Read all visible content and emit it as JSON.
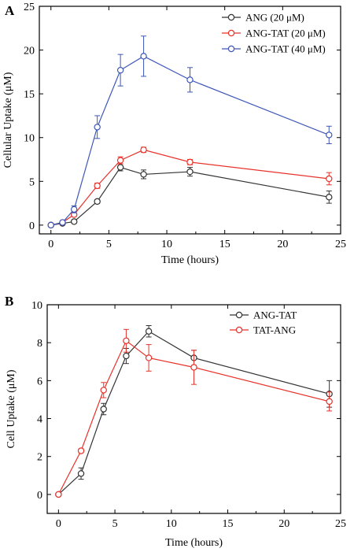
{
  "chart_data": [
    {
      "panel_label": "A",
      "type": "line",
      "xlabel": "Time (hours)",
      "ylabel": "Cellular Uptake (μM)",
      "xlim": [
        -1,
        25
      ],
      "ylim": [
        -1,
        25
      ],
      "xticks": [
        0,
        5,
        10,
        15,
        20,
        25
      ],
      "yticks": [
        0,
        5,
        10,
        15,
        20,
        25
      ],
      "grid": false,
      "legend_position": "top-right",
      "marker": "open-circle",
      "series": [
        {
          "name": "ANG (20 μM)",
          "color": "#333333",
          "x": [
            0,
            1,
            2,
            4,
            6,
            8,
            12,
            24
          ],
          "y": [
            0,
            0.2,
            0.4,
            2.7,
            6.6,
            5.8,
            6.1,
            3.2
          ],
          "err": [
            0,
            0.1,
            0.2,
            0.2,
            0.4,
            0.5,
            0.5,
            0.7
          ]
        },
        {
          "name": "ANG-TAT (20 μM)",
          "color": "#e8322b",
          "x": [
            0,
            1,
            2,
            4,
            6,
            8,
            12,
            24
          ],
          "y": [
            0,
            0.3,
            1.2,
            4.5,
            7.4,
            8.6,
            7.2,
            5.3
          ],
          "err": [
            0,
            0.1,
            0.2,
            0.3,
            0.4,
            0.3,
            0.3,
            0.7
          ]
        },
        {
          "name": "ANG-TAT (40 μM)",
          "color": "#3d56b8",
          "x": [
            0,
            1,
            2,
            4,
            6,
            8,
            12,
            24
          ],
          "y": [
            0,
            0.3,
            1.8,
            11.2,
            17.7,
            19.3,
            16.6,
            10.3
          ],
          "err": [
            0,
            0.1,
            0.4,
            1.3,
            1.8,
            2.3,
            1.4,
            1.0
          ]
        }
      ]
    },
    {
      "panel_label": "B",
      "type": "line",
      "xlabel": "Time (hours)",
      "ylabel": "Cell Uptake (μM)",
      "xlim": [
        -1,
        25
      ],
      "ylim": [
        -1,
        10
      ],
      "xticks": [
        0,
        5,
        10,
        15,
        20,
        25
      ],
      "yticks": [
        0,
        2,
        4,
        6,
        8,
        10
      ],
      "grid": false,
      "legend_position": "top-right",
      "marker": "open-circle",
      "series": [
        {
          "name": "ANG-TAT",
          "color": "#333333",
          "x": [
            0,
            2,
            4,
            6,
            8,
            12,
            24
          ],
          "y": [
            0,
            1.1,
            4.5,
            7.3,
            8.6,
            7.2,
            5.3
          ],
          "err": [
            0,
            0.3,
            0.3,
            0.4,
            0.3,
            0.4,
            0.7
          ]
        },
        {
          "name": "TAT-ANG",
          "color": "#e8322b",
          "x": [
            0,
            2,
            4,
            6,
            8,
            12,
            24
          ],
          "y": [
            0,
            2.3,
            5.5,
            8.1,
            7.2,
            6.7,
            4.9
          ],
          "err": [
            0,
            0.1,
            0.4,
            0.6,
            0.7,
            0.9,
            0.5
          ]
        }
      ]
    }
  ]
}
